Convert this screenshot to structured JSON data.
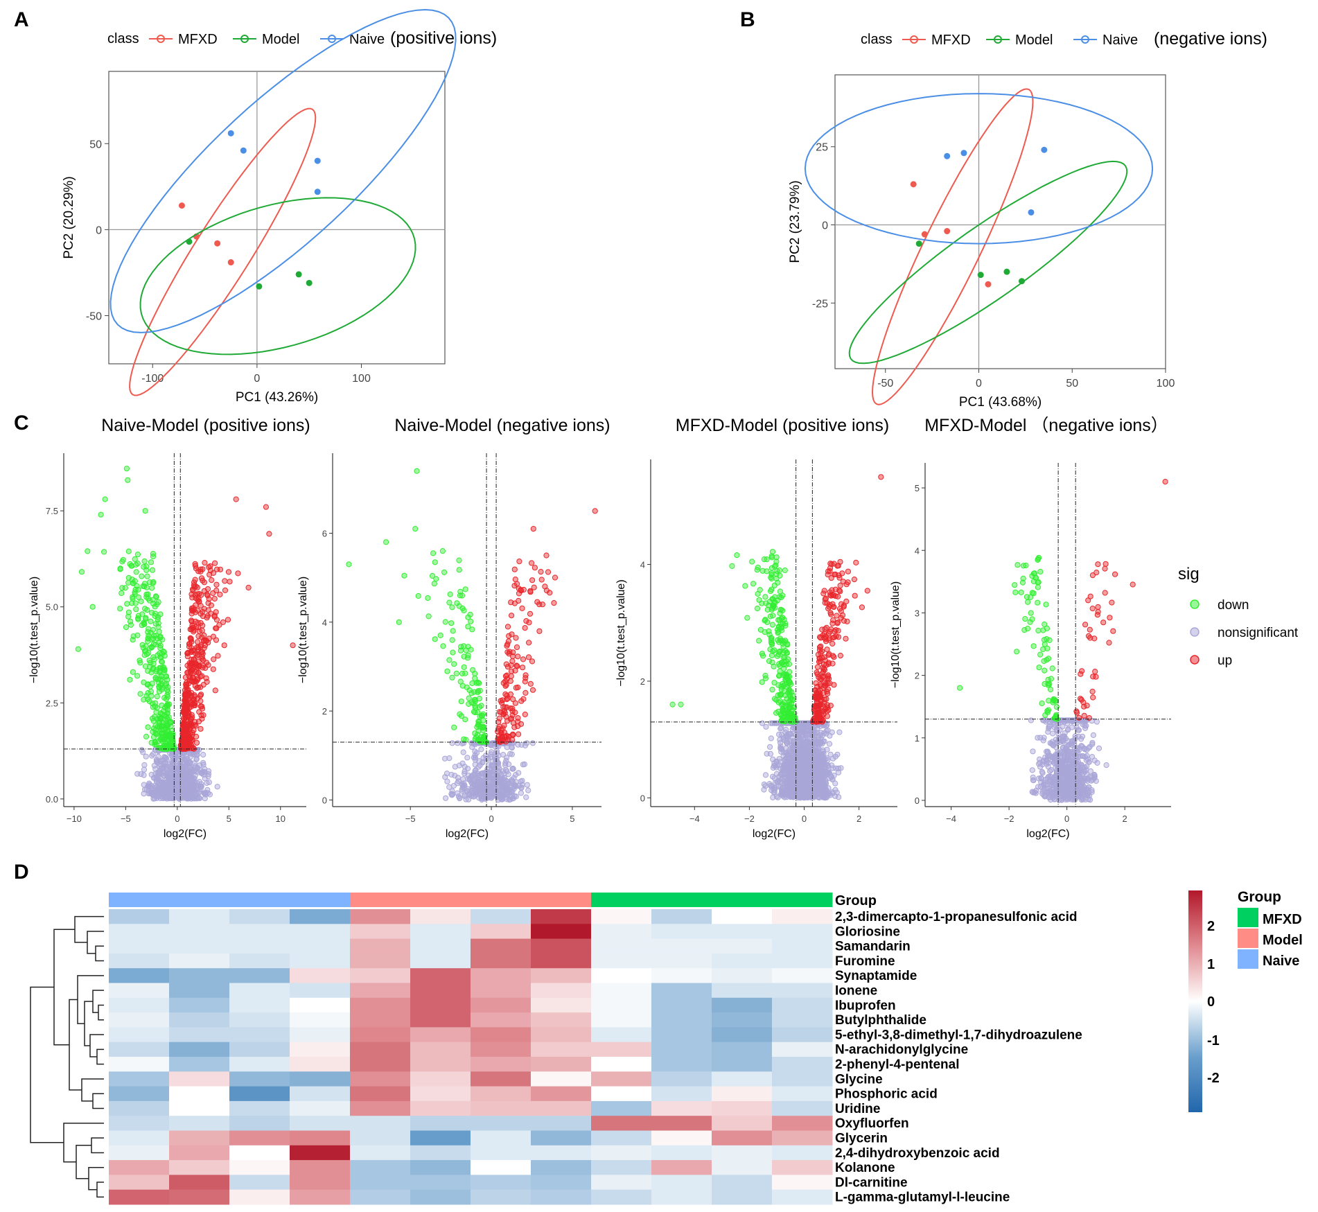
{
  "panels": {
    "A": {
      "letter": "A",
      "subtitle": "(positive ions)"
    },
    "B": {
      "letter": "B",
      "subtitle": "(negative ions)"
    },
    "C": {
      "letter": "C"
    },
    "D": {
      "letter": "D"
    }
  },
  "pca_legend": {
    "title": "class",
    "items": [
      "MFXD",
      "Model",
      "Naive"
    ]
  },
  "colors": {
    "MFXD": "#ee5a4f",
    "Model": "#1faa35",
    "Naive": "#4a8ee6",
    "down": "#33ee33",
    "nonsig": "#a9a6d8",
    "up": "#e8262b",
    "hm_mfxd": "#00d060",
    "hm_model": "#ff8c85",
    "hm_naive": "#7fb2ff"
  },
  "volcano_legend": {
    "title": "sig",
    "items": [
      "down",
      "nonsignificant",
      "up"
    ]
  },
  "heatmap_legend": {
    "title": "Group",
    "items": [
      "MFXD",
      "Model",
      "Naive"
    ],
    "scale_ticks": [
      "2",
      "1",
      "0",
      "-1",
      "-2"
    ]
  },
  "chart_data": [
    {
      "id": "pca_pos",
      "type": "scatter",
      "xlabel": "PC1 (43.26%)",
      "ylabel": "PC2 (20.29%)",
      "xlim": [
        -142,
        180
      ],
      "ylim": [
        -78,
        92
      ],
      "xticks": [
        -100,
        0,
        100
      ],
      "yticks": [
        -50,
        0,
        50
      ],
      "series": [
        {
          "name": "MFXD",
          "points": [
            [
              -72,
              14
            ],
            [
              -58,
              -4
            ],
            [
              -38,
              -8
            ],
            [
              -25,
              -19
            ]
          ],
          "ellipse": {
            "cx": -33,
            "cy": -13,
            "rx": 120,
            "ry": 22,
            "angle_deg": 43
          }
        },
        {
          "name": "Model",
          "points": [
            [
              -65,
              -7
            ],
            [
              2,
              -33
            ],
            [
              40,
              -26
            ],
            [
              50,
              -31
            ]
          ],
          "ellipse": {
            "cx": 20,
            "cy": -27,
            "rx": 133,
            "ry": 42,
            "angle_deg": 8
          }
        },
        {
          "name": "Naive",
          "points": [
            [
              -25,
              56
            ],
            [
              -13,
              46
            ],
            [
              58,
              40
            ],
            [
              58,
              22
            ]
          ],
          "ellipse": {
            "cx": 25,
            "cy": 34,
            "rx": 184,
            "ry": 48,
            "angle_deg": 27
          }
        }
      ]
    },
    {
      "id": "pca_neg",
      "type": "scatter",
      "xlabel": "PC1 (43.68%)",
      "ylabel": "PC2 (23.79%)",
      "xlim": [
        -77,
        100
      ],
      "ylim": [
        -46,
        48
      ],
      "xticks": [
        -50,
        0,
        50,
        100
      ],
      "yticks": [
        -25,
        0,
        25
      ],
      "series": [
        {
          "name": "MFXD",
          "points": [
            [
              -35,
              13
            ],
            [
              -29,
              -3
            ],
            [
              -17,
              -2
            ],
            [
              5,
              -19
            ]
          ],
          "ellipse": {
            "cx": -14,
            "cy": -7,
            "rx": 65,
            "ry": 13,
            "angle_deg": 50
          }
        },
        {
          "name": "Model",
          "points": [
            [
              -32,
              -6
            ],
            [
              1,
              -16
            ],
            [
              15,
              -15
            ],
            [
              23,
              -18
            ]
          ],
          "ellipse": {
            "cx": 5,
            "cy": -12,
            "rx": 80,
            "ry": 13,
            "angle_deg": 22
          }
        },
        {
          "name": "Naive",
          "points": [
            [
              -17,
              22
            ],
            [
              -8,
              23
            ],
            [
              35,
              24
            ],
            [
              28,
              4
            ]
          ],
          "ellipse": {
            "cx": 0,
            "cy": 18,
            "rx": 93,
            "ry": 24,
            "angle_deg": 0
          }
        }
      ]
    },
    {
      "id": "volcano_1",
      "type": "scatter",
      "title": "Naive-Model (positive ions)",
      "xlabel": "log2(FC)",
      "ylabel": "−log10(t.test_p.value)",
      "xlim": [
        -11,
        12.5
      ],
      "ylim": [
        -0.2,
        9.0
      ],
      "xticks": [
        -10,
        -5,
        0,
        5,
        10
      ],
      "yticks": [
        0.0,
        2.5,
        5.0,
        7.5
      ],
      "ytick_labels": [
        "0.0",
        "2.5",
        "5.0",
        "7.5"
      ],
      "vlines": [
        -0.3,
        0.3
      ],
      "hline": 1.3,
      "spread": [
        3.2,
        2.6
      ],
      "counts": {
        "down": 350,
        "up": 450,
        "nonsig": 720
      },
      "notable": [
        {
          "sig": "down",
          "x": -4.9,
          "y": 8.6
        },
        {
          "sig": "down",
          "x": -4.8,
          "y": 8.3
        },
        {
          "sig": "down",
          "x": -7.0,
          "y": 7.8
        },
        {
          "sig": "down",
          "x": -7.4,
          "y": 7.4
        },
        {
          "sig": "down",
          "x": -3.1,
          "y": 7.5
        },
        {
          "sig": "down",
          "x": -9.6,
          "y": 3.9
        },
        {
          "sig": "down",
          "x": -8.2,
          "y": 5.0
        },
        {
          "sig": "up",
          "x": 5.7,
          "y": 7.8
        },
        {
          "sig": "up",
          "x": 8.6,
          "y": 7.6
        },
        {
          "sig": "up",
          "x": 8.9,
          "y": 6.9
        },
        {
          "sig": "up",
          "x": 11.2,
          "y": 4.0
        },
        {
          "sig": "up",
          "x": 6.9,
          "y": 5.5
        }
      ]
    },
    {
      "id": "volcano_2",
      "type": "scatter",
      "title": "Naive-Model (negative ions)",
      "xlabel": "log2(FC)",
      "ylabel": "−log10(t.test_p.value)",
      "xlim": [
        -9.8,
        6.8
      ],
      "ylim": [
        -0.15,
        7.8
      ],
      "xticks": [
        -5,
        0,
        5
      ],
      "yticks": [
        0,
        2,
        4,
        6
      ],
      "ytick_labels": [
        "0",
        "2",
        "4",
        "6"
      ],
      "vlines": [
        -0.3,
        0.3
      ],
      "hline": 1.3,
      "spread": [
        2.4,
        2.2
      ],
      "counts": {
        "down": 130,
        "up": 150,
        "nonsig": 450
      },
      "notable": [
        {
          "sig": "down",
          "x": -4.6,
          "y": 7.4
        },
        {
          "sig": "down",
          "x": -4.7,
          "y": 6.1
        },
        {
          "sig": "down",
          "x": -8.8,
          "y": 5.3
        },
        {
          "sig": "down",
          "x": -6.5,
          "y": 5.8
        },
        {
          "sig": "down",
          "x": -5.7,
          "y": 4.0
        },
        {
          "sig": "down",
          "x": -3.0,
          "y": 5.6
        },
        {
          "sig": "up",
          "x": 6.4,
          "y": 6.5
        },
        {
          "sig": "up",
          "x": 2.6,
          "y": 6.1
        },
        {
          "sig": "up",
          "x": 3.4,
          "y": 5.5
        },
        {
          "sig": "up",
          "x": 2.4,
          "y": 4.7
        }
      ]
    },
    {
      "id": "volcano_3",
      "type": "scatter",
      "title": "MFXD-Model (positive ions)",
      "xlabel": "log2(FC)",
      "ylabel": "−log10(t.test_p.value)",
      "xlim": [
        -5.6,
        3.4
      ],
      "ylim": [
        -0.15,
        5.8
      ],
      "xticks": [
        -4,
        -2,
        0,
        2
      ],
      "yticks": [
        0,
        2,
        4
      ],
      "ytick_labels": [
        "0",
        "2",
        "4"
      ],
      "vlines": [
        -0.3,
        0.3
      ],
      "hline": 1.3,
      "spread": [
        1.1,
        1.0
      ],
      "counts": {
        "down": 260,
        "up": 240,
        "nonsig": 1400
      },
      "notable": [
        {
          "sig": "up",
          "x": 2.8,
          "y": 5.5
        },
        {
          "sig": "down",
          "x": -4.8,
          "y": 1.6
        },
        {
          "sig": "down",
          "x": -4.5,
          "y": 1.6
        },
        {
          "sig": "down",
          "x": -0.9,
          "y": 3.9
        },
        {
          "sig": "down",
          "x": -0.7,
          "y": 3.9
        }
      ]
    },
    {
      "id": "volcano_4",
      "type": "scatter",
      "title": "MFXD-Model （negative ions）",
      "xlabel": "log2(FC)",
      "ylabel": "−log10(t.test_p.value)",
      "xlim": [
        -4.9,
        3.6
      ],
      "ylim": [
        -0.1,
        5.4
      ],
      "xticks": [
        -4,
        -2,
        0,
        2
      ],
      "yticks": [
        0,
        1,
        2,
        3,
        4,
        5
      ],
      "ytick_labels": [
        "0",
        "1",
        "2",
        "3",
        "4",
        "5"
      ],
      "vlines": [
        -0.3,
        0.3
      ],
      "hline": 1.3,
      "spread": [
        1.0,
        1.0
      ],
      "counts": {
        "down": 80,
        "up": 40,
        "nonsig": 700
      },
      "notable": [
        {
          "sig": "up",
          "x": 3.4,
          "y": 5.1
        },
        {
          "sig": "down",
          "x": -3.7,
          "y": 1.8
        },
        {
          "sig": "down",
          "x": -1.2,
          "y": 2.9
        },
        {
          "sig": "up",
          "x": 0.8,
          "y": 2.6
        }
      ]
    },
    {
      "id": "heatmap",
      "type": "heatmap",
      "groups": [
        "Naive",
        "Naive",
        "Naive",
        "Naive",
        "Model",
        "Model",
        "Model",
        "Model",
        "MFXD",
        "MFXD",
        "MFXD",
        "MFXD"
      ],
      "group_label": "Group",
      "rows": [
        "2,3-dimercapto-1-propanesulfonic acid",
        "Gloriosine",
        "Samandarin",
        "Furomine",
        "Synaptamide",
        "Ionene",
        "Ibuprofen",
        "Butylphthalide",
        "5-ethyl-3,8-dimethyl-1,7-dihydroazulene",
        "N-arachidonylglycine",
        "2-phenyl-4-pentenal",
        "Glycine",
        "Phosphoric acid",
        "Uridine",
        "Oxyfluorfen",
        "Glycerin",
        "2,4-dihydroxybenzoic acid",
        "Kolanone",
        "Dl-carnitine",
        "L-gamma-glutamyl-l-leucine"
      ],
      "values": [
        [
          -0.7,
          -0.3,
          -0.5,
          -1.2,
          1.3,
          0.3,
          -0.5,
          2.3,
          0.1,
          -0.6,
          0.0,
          0.2
        ],
        [
          -0.3,
          -0.3,
          -0.3,
          -0.3,
          0.6,
          -0.3,
          0.6,
          2.7,
          -0.2,
          -0.3,
          -0.3,
          -0.3
        ],
        [
          -0.3,
          -0.3,
          -0.3,
          -0.3,
          0.9,
          -0.3,
          1.6,
          2.0,
          -0.2,
          -0.2,
          -0.2,
          -0.3
        ],
        [
          -0.4,
          -0.2,
          -0.4,
          -0.3,
          0.9,
          -0.3,
          1.6,
          2.0,
          -0.2,
          -0.2,
          -0.3,
          -0.3
        ],
        [
          -1.2,
          -1.0,
          -1.0,
          0.4,
          0.6,
          1.8,
          1.0,
          0.8,
          0.0,
          -0.1,
          -0.2,
          -0.1
        ],
        [
          -0.2,
          -1.0,
          -0.3,
          -0.4,
          1.0,
          1.8,
          1.0,
          0.4,
          -0.1,
          -0.8,
          -0.4,
          -0.4
        ],
        [
          -0.3,
          -0.8,
          -0.3,
          0.0,
          1.3,
          1.8,
          1.2,
          0.3,
          -0.1,
          -0.8,
          -1.1,
          -0.5
        ],
        [
          -0.2,
          -0.6,
          -0.4,
          -0.1,
          1.3,
          1.8,
          1.0,
          0.7,
          -0.1,
          -0.8,
          -1.0,
          -0.5
        ],
        [
          -0.3,
          -0.5,
          -0.5,
          -0.2,
          1.4,
          1.0,
          1.4,
          0.8,
          -0.3,
          -0.8,
          -1.1,
          -0.6
        ],
        [
          -0.5,
          -1.1,
          -0.6,
          0.2,
          1.6,
          0.8,
          1.3,
          0.6,
          0.6,
          -0.8,
          -0.9,
          -0.2
        ],
        [
          -0.1,
          -0.8,
          -0.3,
          0.3,
          1.6,
          0.8,
          1.0,
          0.9,
          0.0,
          -0.8,
          -0.9,
          -0.5
        ],
        [
          -0.8,
          0.4,
          -1.0,
          -1.1,
          1.3,
          0.5,
          1.6,
          0.1,
          0.9,
          -0.6,
          -0.3,
          -0.5
        ],
        [
          -1.0,
          0.0,
          -1.6,
          -0.4,
          1.6,
          0.4,
          0.8,
          1.2,
          0.0,
          -0.4,
          0.2,
          -0.3
        ],
        [
          -0.6,
          0.0,
          -0.5,
          -0.2,
          1.3,
          0.6,
          0.7,
          0.7,
          -0.8,
          0.4,
          0.5,
          -0.5
        ],
        [
          -0.5,
          -0.4,
          -0.6,
          -0.4,
          -0.4,
          -0.6,
          -0.6,
          -0.6,
          1.6,
          1.6,
          0.6,
          1.3
        ],
        [
          -0.3,
          0.9,
          1.3,
          1.4,
          -0.4,
          -1.4,
          -0.3,
          -1.0,
          -0.5,
          0.1,
          1.3,
          0.9
        ],
        [
          -0.2,
          1.0,
          0.0,
          2.6,
          -0.3,
          -0.5,
          -0.3,
          -0.3,
          -0.2,
          -0.3,
          -0.2,
          -0.3
        ],
        [
          1.0,
          0.6,
          0.1,
          1.3,
          -0.8,
          -1.0,
          0.0,
          -0.9,
          -0.5,
          1.0,
          -0.2,
          0.6
        ],
        [
          0.7,
          1.9,
          -0.5,
          1.3,
          -0.8,
          -0.8,
          -0.7,
          -0.8,
          -0.2,
          -0.3,
          -0.5,
          0.1
        ],
        [
          1.8,
          1.7,
          0.2,
          1.1,
          -0.7,
          -0.9,
          -0.6,
          -0.7,
          -0.5,
          -0.3,
          -0.5,
          -0.3
        ]
      ],
      "color_range": [
        -2.7,
        2.7
      ]
    }
  ]
}
